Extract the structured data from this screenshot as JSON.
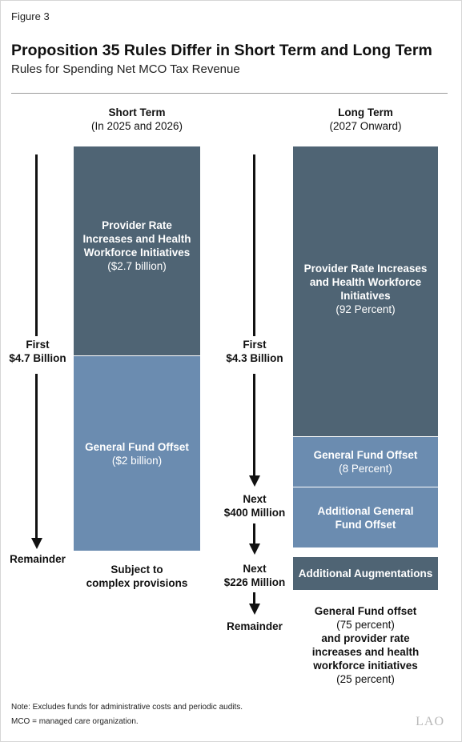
{
  "figure_label": "Figure 3",
  "title": "Proposition 35 Rules Differ in Short Term and Long Term",
  "subtitle": "Rules for Spending Net MCO Tax Revenue",
  "short_term": {
    "heading": "Short Term",
    "subheading": "(In 2025 and 2026)",
    "labels": {
      "first_line1": "First",
      "first_line2": "$4.7 Billion",
      "remainder": "Remainder"
    },
    "boxes": [
      {
        "title_lines": [
          "Provider Rate",
          "Increases and Health",
          "Workforce Initiatives"
        ],
        "amount": "($2.7 billion)"
      },
      {
        "title_lines": [
          "General Fund Offset"
        ],
        "amount": "($2 billion)"
      }
    ],
    "remainder_note": [
      "Subject to",
      "complex provisions"
    ]
  },
  "long_term": {
    "heading": "Long Term",
    "subheading": "(2027 Onward)",
    "labels": {
      "first_line1": "First",
      "first_line2": "$4.3 Billion",
      "next1_line1": "Next",
      "next1_line2": "$400 Million",
      "next2_line1": "Next",
      "next2_line2": "$226 Million",
      "remainder": "Remainder"
    },
    "boxes": [
      {
        "title_lines": [
          "Provider Rate Increases",
          "and Health Workforce",
          "Initiatives"
        ],
        "amount": "(92 Percent)"
      },
      {
        "title_lines": [
          "General Fund Offset"
        ],
        "amount": "(8 Percent)"
      },
      {
        "title_lines": [
          "Additional General",
          "Fund Offset"
        ],
        "amount": ""
      },
      {
        "title_lines": [
          "Additional Augmentations"
        ],
        "amount": ""
      }
    ],
    "remainder_note": {
      "line1": "General Fund offset",
      "line2": "(75 percent)",
      "line3": "and provider rate",
      "line4": "increases and health",
      "line5": "workforce initiatives",
      "line6": "(25 percent)"
    }
  },
  "notes": [
    "Note: Excludes funds for administrative costs and periodic audits.",
    "MCO = managed care organization."
  ],
  "logo_text": "LAO",
  "colors": {
    "dark_box": "#4f6474",
    "light_box": "#6b8cb0",
    "arrow": "#111111"
  }
}
